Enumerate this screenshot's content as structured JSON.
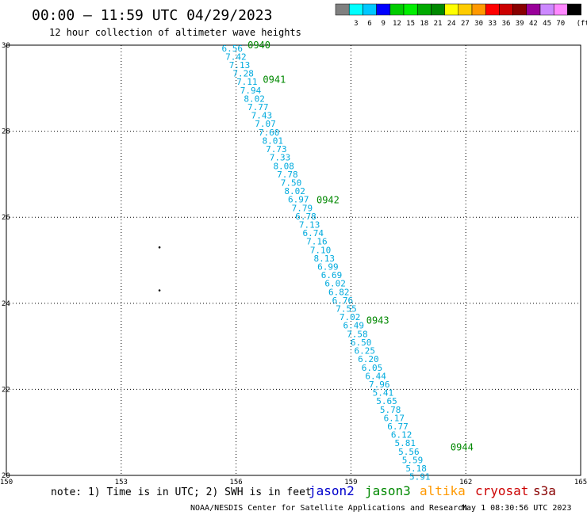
{
  "header": {
    "title": "00:00 – 11:59 UTC 04/29/2023",
    "subtitle": "12 hour collection of altimeter wave heights"
  },
  "scale": {
    "unit": "(ft)",
    "swatches": [
      {
        "label": "",
        "color": "#808080"
      },
      {
        "label": "3",
        "color": "#00ffff"
      },
      {
        "label": "6",
        "color": "#00c8ff"
      },
      {
        "label": "9",
        "color": "#0000ff"
      },
      {
        "label": "12",
        "color": "#00cc00"
      },
      {
        "label": "15",
        "color": "#00ee00"
      },
      {
        "label": "18",
        "color": "#00aa00"
      },
      {
        "label": "21",
        "color": "#008800"
      },
      {
        "label": "24",
        "color": "#ffff00"
      },
      {
        "label": "27",
        "color": "#ffcc00"
      },
      {
        "label": "30",
        "color": "#ff9900"
      },
      {
        "label": "33",
        "color": "#ff0000"
      },
      {
        "label": "36",
        "color": "#cc0000"
      },
      {
        "label": "39",
        "color": "#880000"
      },
      {
        "label": "42",
        "color": "#990099"
      },
      {
        "label": "45",
        "color": "#cc88ff"
      },
      {
        "label": "70",
        "color": "#ff88ff"
      },
      {
        "label": "",
        "color": "#000000"
      }
    ]
  },
  "axes": {
    "lon_range": [
      150,
      165
    ],
    "lat_range": [
      20,
      30
    ],
    "lon_ticks": [
      "150",
      "153",
      "156",
      "159",
      "162",
      "165"
    ],
    "lat_ticks": [
      "30",
      "28",
      "26",
      "24",
      "22",
      "20"
    ]
  },
  "track": {
    "color": "#00aadd",
    "lat_start": 29.93,
    "lon_start": 155.9,
    "lat_end": 19.97,
    "lon_end": 160.8,
    "values": [
      "6.56",
      "7.42",
      "7.13",
      "7.28",
      "7.11",
      "7.94",
      "8.02",
      "7.77",
      "7.43",
      "7.07",
      "7.60",
      "8.01",
      "7.73",
      "7.33",
      "8.08",
      "7.78",
      "7.50",
      "8.02",
      "6.97",
      "7.79",
      "6.78",
      "7.13",
      "6.74",
      "7.16",
      "7.10",
      "8.13",
      "6.99",
      "6.69",
      "6.02",
      "6.82",
      "6.76",
      "7.55",
      "7.02",
      "6.49",
      "7.58",
      "6.50",
      "6.25",
      "6.20",
      "6.05",
      "6.44",
      "7.96",
      "5.41",
      "5.65",
      "5.78",
      "6.17",
      "6.77",
      "6.12",
      "5.81",
      "5.56",
      "5.59",
      "5.18",
      "5.91"
    ]
  },
  "time_labels": {
    "color": "#008800",
    "items": [
      {
        "text": "0940",
        "lat": 30.0,
        "lon": 156.6
      },
      {
        "text": "0941",
        "lat": 29.2,
        "lon": 157.0
      },
      {
        "text": "0942",
        "lat": 26.4,
        "lon": 158.4
      },
      {
        "text": "0943",
        "lat": 23.6,
        "lon": 159.7
      },
      {
        "text": "0944",
        "lat": 20.65,
        "lon": 161.9
      }
    ]
  },
  "dots": [
    {
      "lat": 25.3,
      "lon": 154.0
    },
    {
      "lat": 24.3,
      "lon": 154.0
    }
  ],
  "footer": {
    "note": "note: 1) Time is in UTC; 2) SWH is in feet",
    "satellites": [
      {
        "name": "jason2",
        "color": "#0000cc"
      },
      {
        "name": "jason3",
        "color": "#008800"
      },
      {
        "name": "altika",
        "color": "#ff9900"
      },
      {
        "name": "cryosat",
        "color": "#cc0000"
      },
      {
        "name": "s3a",
        "color": "#880000"
      }
    ],
    "credit": "NOAA/NESDIS Center for Satellite Applications and Research",
    "timestamp": "May  1 08:30:56 UTC 2023"
  }
}
